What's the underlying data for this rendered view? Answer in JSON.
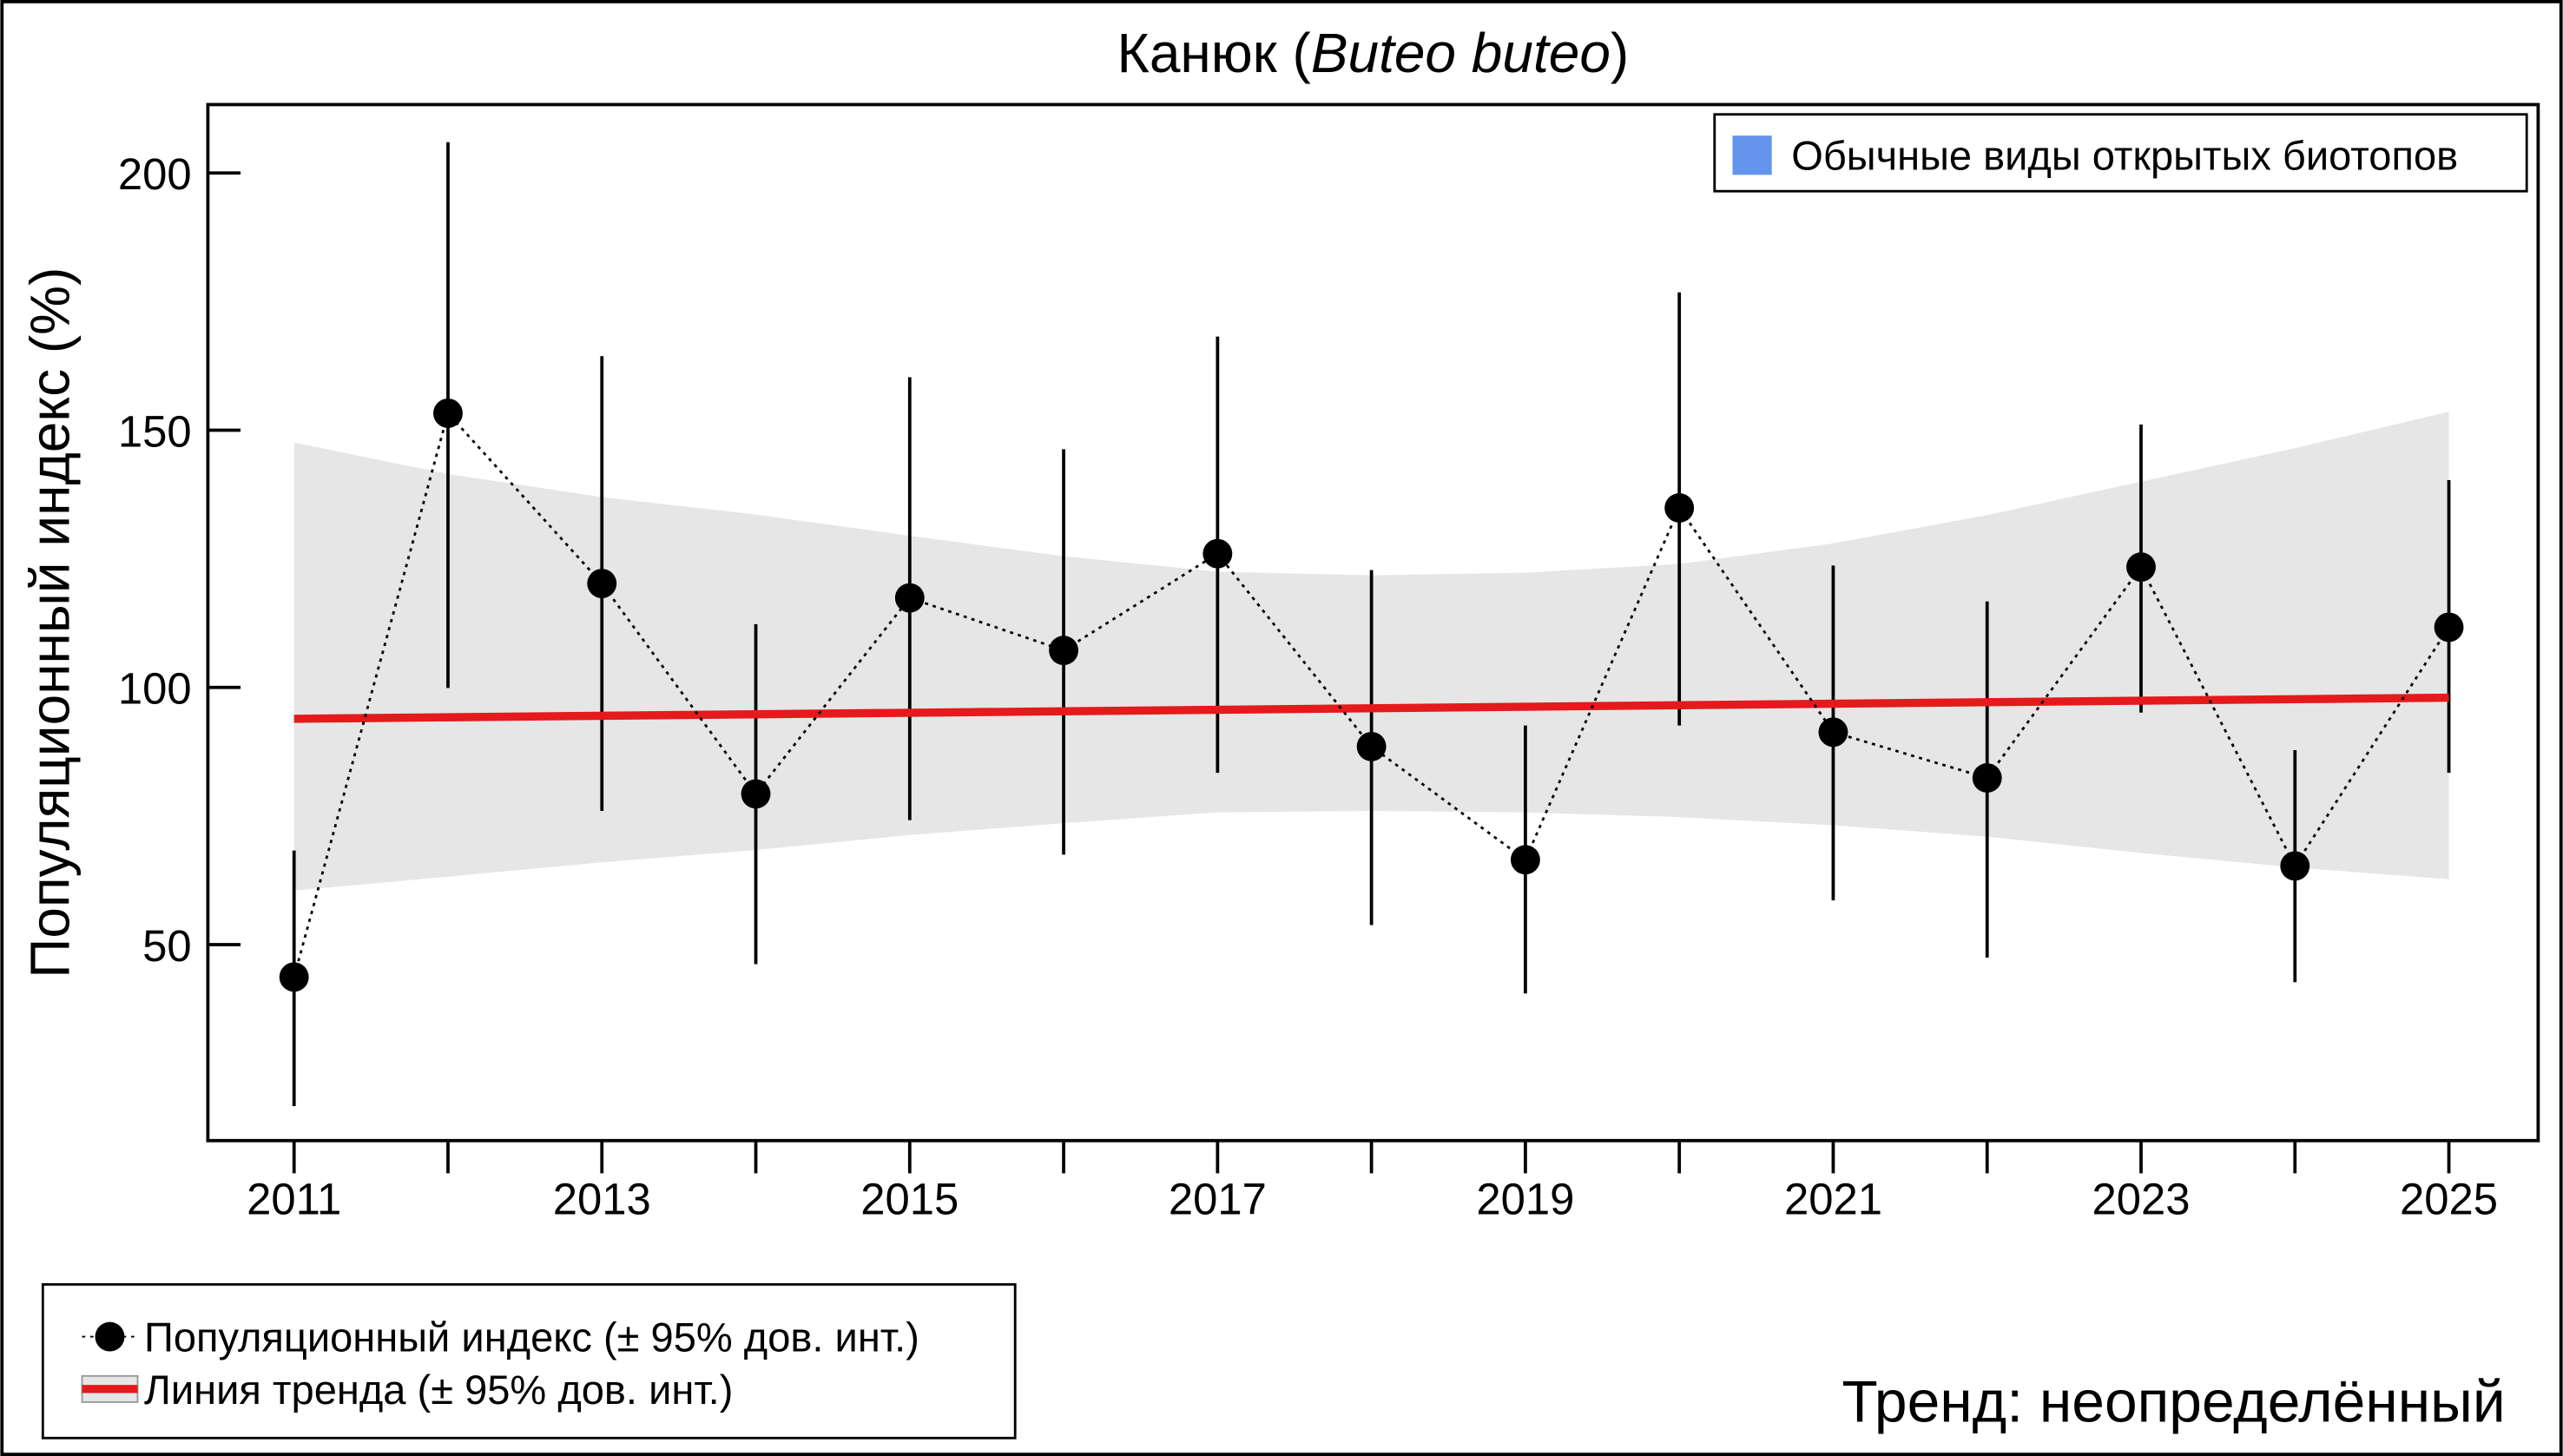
{
  "chart_data": {
    "type": "line",
    "title": "Канюк (",
    "title_italic": "Buteo buteo",
    "title_end": ")",
    "xlabel": "",
    "ylabel": "Популяционный индекс (%)",
    "xlim": [
      2010.44,
      2025.58
    ],
    "ylim": [
      11.9,
      213.3
    ],
    "x_ticks": [
      2011,
      2012,
      2013,
      2014,
      2015,
      2016,
      2017,
      2018,
      2019,
      2020,
      2021,
      2022,
      2023,
      2024,
      2025
    ],
    "x_tick_labels": [
      "2011",
      "",
      "2013",
      "",
      "2015",
      "",
      "2017",
      "",
      "2019",
      "",
      "2021",
      "",
      "2023",
      "",
      "2025"
    ],
    "y_ticks": [
      50,
      100,
      150,
      200
    ],
    "y_tick_labels": [
      "50",
      "100",
      "150",
      "200"
    ],
    "grid": false,
    "series": [
      {
        "name": "Популяционный индекс (± 95% дов. инт.)",
        "x": [
          2011,
          2012,
          2013,
          2014,
          2015,
          2016,
          2017,
          2018,
          2019,
          2020,
          2021,
          2022,
          2023,
          2024,
          2025
        ],
        "y": [
          43.7,
          153.3,
          120.2,
          79.3,
          117.4,
          107.2,
          126.0,
          88.5,
          66.5,
          134.9,
          91.3,
          82.4,
          123.4,
          65.3,
          111.7
        ],
        "ci_upper": [
          68.3,
          206.0,
          164.4,
          112.3,
          160.3,
          146.3,
          168.2,
          122.8,
          92.6,
          176.8,
          123.7,
          116.7,
          151.1,
          87.8,
          140.3
        ],
        "ci_lower": [
          18.6,
          99.9,
          76.0,
          46.2,
          74.2,
          67.5,
          83.4,
          53.8,
          40.5,
          92.6,
          58.6,
          47.5,
          95.1,
          42.7,
          83.4
        ],
        "color": "#000000"
      },
      {
        "name": "Линия тренда (± 95% дов. инт.)",
        "x": [
          2011,
          2025
        ],
        "y": [
          93.9,
          98.0
        ],
        "band_x": [
          2011,
          2012,
          2013,
          2014,
          2015,
          2016,
          2017,
          2018,
          2019,
          2020,
          2021,
          2022,
          2023,
          2024,
          2025
        ],
        "band_upper": [
          147.6,
          141.5,
          137.0,
          133.6,
          129.5,
          125.5,
          122.5,
          121.8,
          122.3,
          124.0,
          128.0,
          133.5,
          140.0,
          146.5,
          153.6
        ],
        "band_lower": [
          60.5,
          63.2,
          66.0,
          68.4,
          71.3,
          73.6,
          75.7,
          76.0,
          75.7,
          74.8,
          73.2,
          71.0,
          67.8,
          65.0,
          62.7
        ],
        "color": "#e41a1c",
        "band_color": "#e6e6e6"
      }
    ],
    "group_legend": {
      "label": "Обычные виды открытых биотопов",
      "color": "#6495ed",
      "placement": "top-right"
    },
    "series_legend_placement": "bottom-left",
    "annotation": "Тренд: неопределённый"
  }
}
